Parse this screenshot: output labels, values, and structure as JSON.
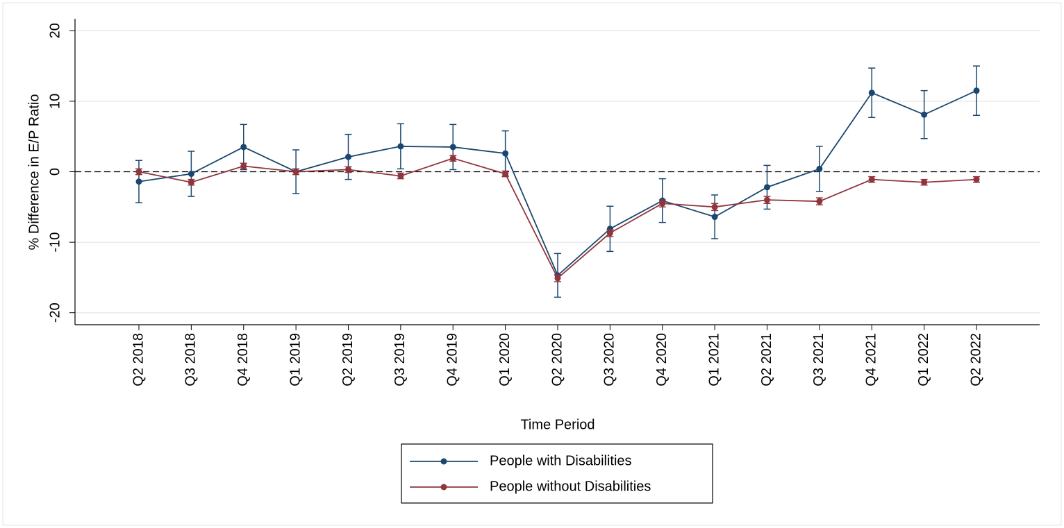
{
  "chart_data": {
    "type": "line",
    "x_label": "Time Period",
    "y_label": "% Difference in E/P Ratio",
    "categories": [
      "Q2 2018",
      "Q3 2018",
      "Q4 2018",
      "Q1 2019",
      "Q2 2019",
      "Q3 2019",
      "Q4 2019",
      "Q1 2020",
      "Q2 2020",
      "Q3 2020",
      "Q4 2020",
      "Q1 2021",
      "Q2 2021",
      "Q3 2021",
      "Q4 2021",
      "Q1 2022",
      "Q2 2022"
    ],
    "series": [
      {
        "name": "People with Disabilities",
        "color": "#1a476f",
        "values": [
          -1.4,
          -0.3,
          3.5,
          0.0,
          2.1,
          3.6,
          3.5,
          2.6,
          -14.7,
          -8.1,
          -4.1,
          -6.4,
          -2.2,
          0.4,
          11.2,
          8.1,
          11.5
        ],
        "errors": [
          3.0,
          3.2,
          3.2,
          3.1,
          3.2,
          3.2,
          3.2,
          3.2,
          3.1,
          3.2,
          3.1,
          3.1,
          3.1,
          3.2,
          3.5,
          3.4,
          3.5
        ]
      },
      {
        "name": "People without Disabilities",
        "color": "#90353b",
        "values": [
          0.0,
          -1.5,
          0.8,
          0.0,
          0.3,
          -0.6,
          1.9,
          -0.3,
          -15.1,
          -8.7,
          -4.5,
          -5.0,
          -4.0,
          -4.2,
          -1.1,
          -1.5,
          -1.1
        ],
        "errors": [
          0.4,
          0.4,
          0.4,
          0.4,
          0.4,
          0.4,
          0.4,
          0.4,
          0.5,
          0.5,
          0.5,
          0.5,
          0.5,
          0.5,
          0.4,
          0.4,
          0.4
        ]
      }
    ],
    "ylim": [
      -21.7,
      21.7
    ],
    "yticks": [
      -20,
      -10,
      0,
      10,
      20
    ],
    "grid": true,
    "reference_line": 0,
    "legend": "bottom"
  }
}
